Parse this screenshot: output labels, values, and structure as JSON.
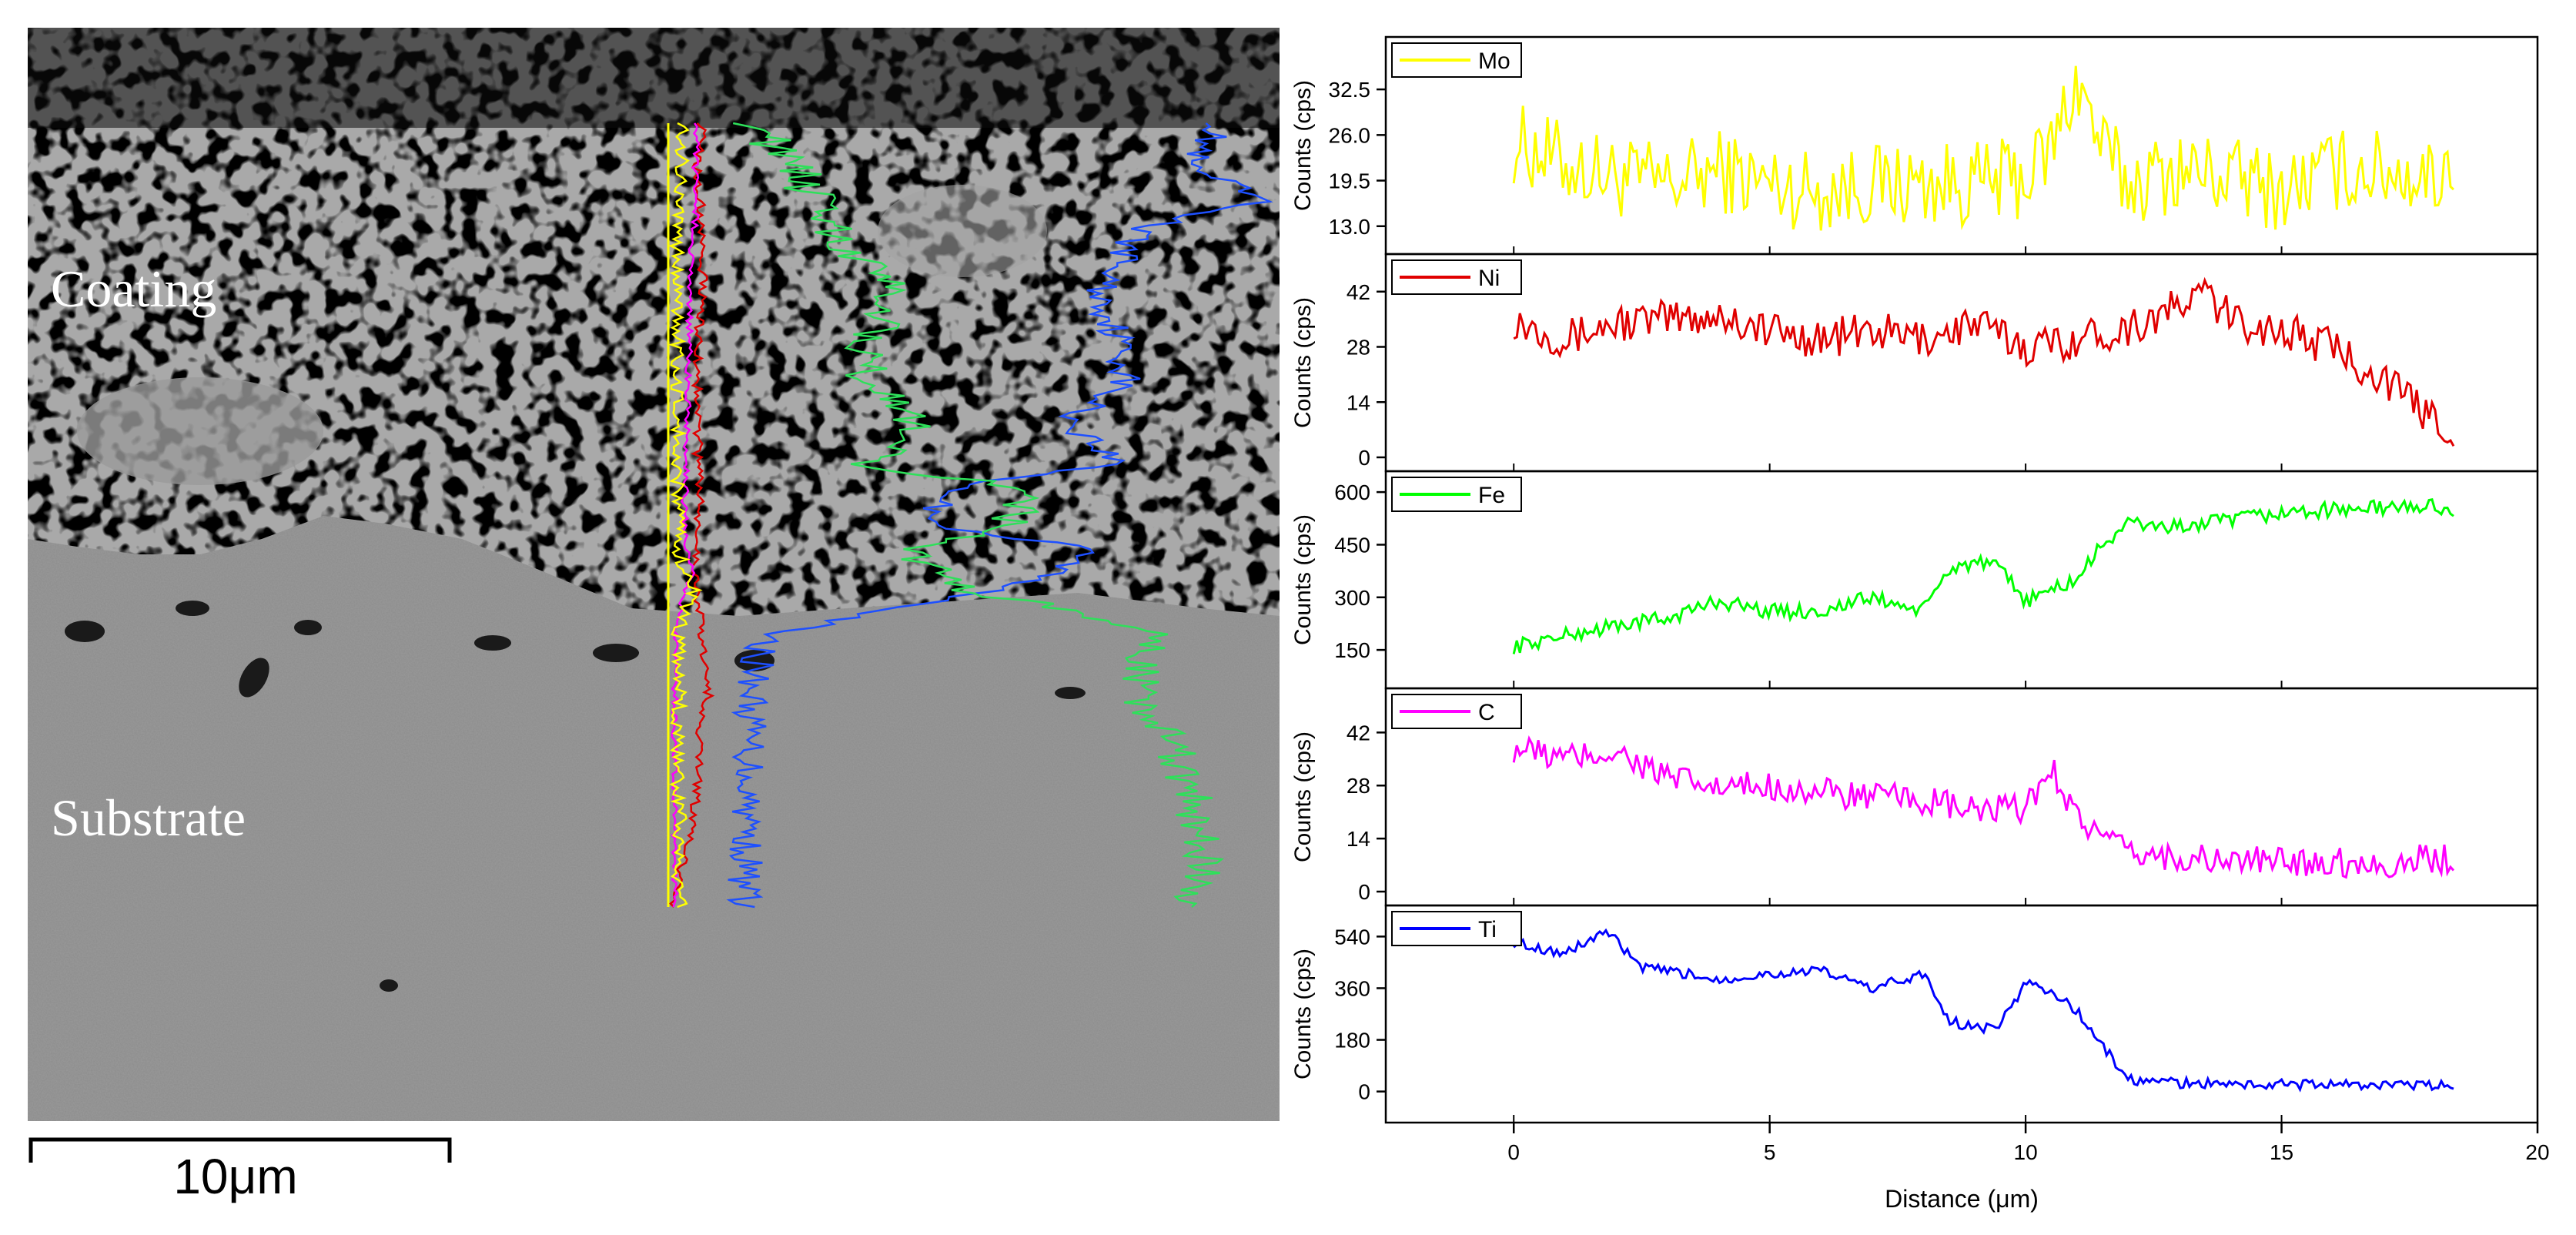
{
  "micrograph": {
    "labels": {
      "coating": "Coating",
      "substrate": "Substrate"
    },
    "scale_bar": "10μm"
  },
  "colors": {
    "Mo": "#ffff00",
    "Ni": "#e00000",
    "Fe": "#00ff00",
    "C": "#ff00ff",
    "Ti": "#0000ff"
  },
  "chart_data": {
    "type": "line",
    "xlabel": "Distance (μm)",
    "xlim": [
      -2.5,
      20
    ],
    "x_ticks": [
      "0",
      "5",
      "10",
      "15",
      "20"
    ],
    "ylabel": "Counts (cps)",
    "panels": [
      {
        "name": "Mo",
        "ylim": [
          11,
          38
        ],
        "y_ticks": [
          "13.0",
          "19.5",
          "26.0",
          "32.5"
        ],
        "x": [
          0,
          1,
          2,
          3,
          4,
          5,
          6,
          7,
          8,
          9,
          10,
          10.5,
          11,
          11.5,
          12,
          13,
          14,
          15,
          16,
          17,
          18,
          18.4
        ],
        "values": [
          25,
          22,
          20,
          19,
          21,
          19,
          18,
          19,
          19,
          19,
          20,
          24,
          34,
          24,
          19,
          21,
          20,
          18,
          21,
          21,
          20,
          23
        ]
      },
      {
        "name": "Ni",
        "ylim": [
          0,
          48
        ],
        "y_ticks": [
          "0",
          "14",
          "28",
          "42"
        ],
        "x": [
          0,
          1,
          2,
          3,
          4,
          5,
          6,
          7,
          8,
          9,
          10,
          11,
          12,
          13,
          13.5,
          14,
          15,
          16,
          17,
          17.5,
          18,
          18.4
        ],
        "values": [
          35,
          30,
          34,
          35,
          36,
          32,
          30,
          32,
          30,
          34,
          28,
          30,
          33,
          38,
          42,
          35,
          32,
          28,
          20,
          14,
          10,
          6
        ]
      },
      {
        "name": "Fe",
        "ylim": [
          80,
          620
        ],
        "y_ticks": [
          "150",
          "300",
          "450",
          "600"
        ],
        "x": [
          0,
          1,
          2,
          3,
          4,
          5,
          6,
          7,
          8,
          8.5,
          9,
          9.5,
          10,
          11,
          11.5,
          12,
          13,
          14,
          15,
          16,
          17,
          18,
          18.4
        ],
        "values": [
          160,
          190,
          220,
          240,
          290,
          260,
          260,
          300,
          260,
          380,
          400,
          380,
          290,
          350,
          450,
          510,
          500,
          520,
          540,
          550,
          555,
          560,
          545
        ]
      },
      {
        "name": "C",
        "ylim": [
          0,
          50
        ],
        "y_ticks": [
          "0",
          "14",
          "28",
          "42"
        ],
        "x": [
          0,
          1,
          2,
          3,
          4,
          5,
          6,
          7,
          8,
          9,
          10,
          10.5,
          11,
          11.5,
          12,
          13,
          14,
          15,
          16,
          17,
          18,
          18.4
        ],
        "values": [
          38,
          35,
          37,
          30,
          27,
          28,
          26,
          25,
          24,
          21,
          22,
          33,
          20,
          14,
          10,
          9,
          8,
          8,
          8,
          7,
          9,
          8
        ]
      },
      {
        "name": "Ti",
        "ylim": [
          -60,
          600
        ],
        "y_ticks": [
          "0",
          "180",
          "360",
          "540"
        ],
        "x": [
          0,
          1,
          1.8,
          2.5,
          3,
          4,
          5,
          6,
          7,
          8,
          8.5,
          9,
          9.5,
          10,
          10.5,
          11,
          11.5,
          12,
          13,
          14,
          15,
          16,
          17,
          18,
          18.4
        ],
        "values": [
          520,
          480,
          560,
          430,
          420,
          390,
          410,
          420,
          360,
          410,
          250,
          220,
          230,
          380,
          350,
          280,
          160,
          40,
          30,
          25,
          25,
          25,
          22,
          20,
          20
        ]
      }
    ]
  }
}
